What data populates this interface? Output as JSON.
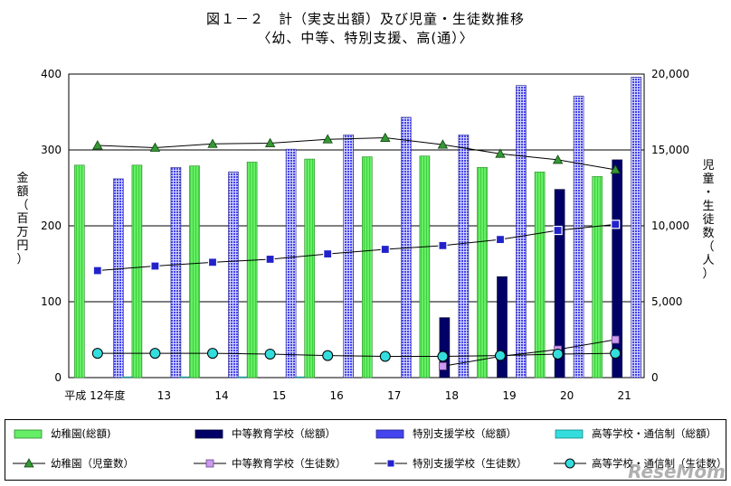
{
  "title": "図１－２　計（実支出額）及び児童・生徒数推移",
  "subtitle": "〈幼、中等、特別支援、高(通）〉",
  "y_left_label": "金額（百万円）",
  "y_right_label": "児童・生徒数（人）",
  "watermark": "ReseMom",
  "colors": {
    "kindergarten_bar": "#66ee66",
    "secondary_bar": "#000066",
    "special_bar": "#4444ee",
    "highschool_bar": "#33dddd",
    "kindergarten_line": "#339933",
    "secondary_marker": "#cc99ee",
    "special_marker": "#2222cc",
    "highschool_marker": "#33dddd"
  },
  "chart_data": {
    "type": "bar",
    "categories": [
      "平成 12年度",
      "13",
      "14",
      "15",
      "16",
      "17",
      "18",
      "19",
      "20",
      "21"
    ],
    "y_left": {
      "ticks": [
        0,
        100,
        200,
        300,
        400
      ],
      "ylim": [
        0,
        400
      ]
    },
    "y_right": {
      "ticks": [
        "0",
        "5,000",
        "10,000",
        "15,000",
        "20,000"
      ],
      "ylim": [
        0,
        20000
      ]
    },
    "grid": true,
    "legend_position": "bottom",
    "bar_series": [
      {
        "name": "幼稚園(総額)",
        "values": [
          280,
          280,
          279,
          284,
          288,
          291,
          292,
          277,
          271,
          265
        ]
      },
      {
        "name": "中等教育学校（総額）",
        "values": [
          0,
          0,
          0,
          0,
          0,
          0,
          79,
          133,
          248,
          287
        ]
      },
      {
        "name": "特別支援学校（総額）",
        "values": [
          262,
          277,
          271,
          301,
          320,
          343,
          320,
          385,
          371,
          396
        ]
      },
      {
        "name": "高等学校・通信制（総額）",
        "values": [
          1,
          1,
          1,
          1,
          0,
          0,
          0,
          0,
          0,
          0
        ]
      }
    ],
    "line_series": [
      {
        "name": "幼稚園（児童数）",
        "marker": "triangle",
        "values": [
          15300,
          15150,
          15400,
          15450,
          15700,
          15800,
          15350,
          14750,
          14350,
          13700
        ]
      },
      {
        "name": "中等教育学校（生徒数）",
        "marker": "square",
        "values": [
          null,
          null,
          null,
          null,
          null,
          null,
          750,
          1400,
          1850,
          2500
        ]
      },
      {
        "name": "特別支援学校（生徒数）",
        "marker": "small-square",
        "values": [
          7050,
          7350,
          7600,
          7800,
          8150,
          8450,
          8700,
          9100,
          9700,
          10100
        ]
      },
      {
        "name": "高等学校・通信制（生徒数）",
        "marker": "circle",
        "values": [
          1600,
          1600,
          1600,
          1550,
          1450,
          1400,
          1400,
          1450,
          1550,
          1600
        ]
      }
    ]
  }
}
